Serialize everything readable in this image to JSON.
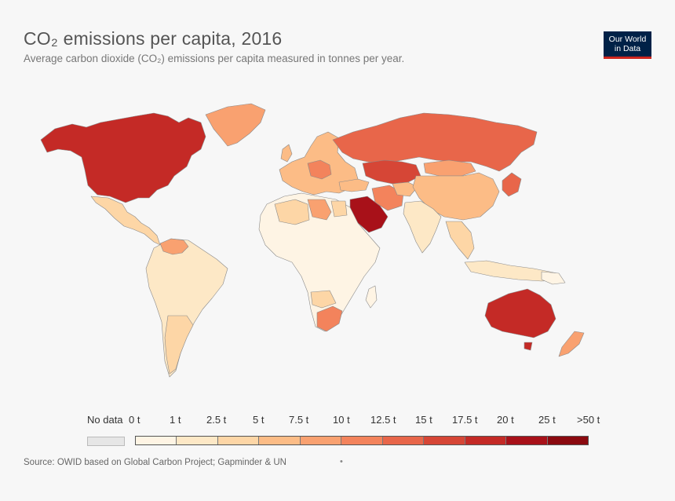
{
  "header": {
    "title": "CO₂ emissions per capita, 2016",
    "subtitle": "Average carbon dioxide (CO₂) emissions per capita measured in tonnes per year."
  },
  "logo": {
    "line1": "Our World",
    "line2": "in Data"
  },
  "legend": {
    "no_data_label": "No data",
    "no_data_color": "#e6e6e6",
    "bins": [
      {
        "label": "0 t",
        "color": "#fef4e4"
      },
      {
        "label": "1 t",
        "color": "#fde8c6"
      },
      {
        "label": "2.5 t",
        "color": "#fdd6a6"
      },
      {
        "label": "5 t",
        "color": "#fcbc86"
      },
      {
        "label": "7.5 t",
        "color": "#f9a170"
      },
      {
        "label": "10 t",
        "color": "#f3835c"
      },
      {
        "label": "12.5 t",
        "color": "#e8664a"
      },
      {
        "label": "15 t",
        "color": "#d64636"
      },
      {
        "label": "17.5 t",
        "color": "#c42a26"
      },
      {
        "label": "20 t",
        "color": "#a81119"
      },
      {
        "label": "25 t",
        "color": "#8b0a10"
      },
      {
        "label": ">50 t",
        "color": "#6b0509"
      }
    ]
  },
  "map_data": {
    "type": "choropleth",
    "variable": "tonnes CO₂ per capita",
    "regions": [
      {
        "region": "United States / Canada",
        "bin": "15–17.5 t"
      },
      {
        "region": "Greenland",
        "bin": "7.5–10 t"
      },
      {
        "region": "Russia",
        "bin": "10–12.5 t"
      },
      {
        "region": "Kazakhstan",
        "bin": "12.5–15 t"
      },
      {
        "region": "Saudi Arabia / Gulf",
        "bin": "17.5–20 t"
      },
      {
        "region": "Iran",
        "bin": "7.5–10 t"
      },
      {
        "region": "China",
        "bin": "5–7.5 t"
      },
      {
        "region": "Mongolia",
        "bin": "7.5–10 t"
      },
      {
        "region": "India",
        "bin": "1–2.5 t"
      },
      {
        "region": "Australia",
        "bin": "15–17.5 t"
      },
      {
        "region": "New Zealand",
        "bin": "7.5–10 t"
      },
      {
        "region": "South Africa",
        "bin": "7.5–10 t"
      },
      {
        "region": "Libya",
        "bin": "7.5–10 t"
      },
      {
        "region": "Europe (mixed)",
        "bin": "5–10 t"
      },
      {
        "region": "South America",
        "bin": "1–5 t"
      },
      {
        "region": "Africa (most)",
        "bin": "0–1 t"
      },
      {
        "region": "Japan / Korea",
        "bin": "10–12.5 t"
      }
    ]
  },
  "source": "Source: OWID based on Global Carbon Project; Gapminder & UN",
  "footer_dot": "•"
}
